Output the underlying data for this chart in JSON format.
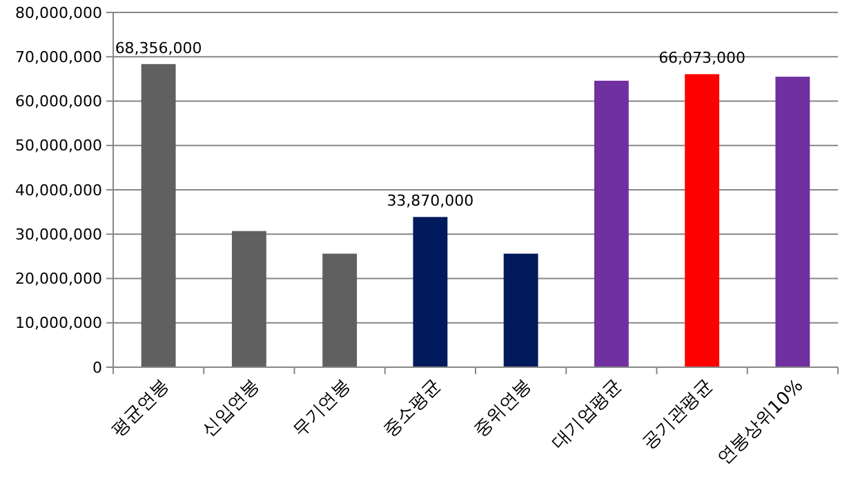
{
  "chart_data": {
    "type": "bar",
    "categories": [
      "평균연봉",
      "신입연봉",
      "무기연봉",
      "중소평균",
      "중위연봉",
      "대기업평균",
      "공기관평균",
      "연봉상위10%"
    ],
    "values": [
      68356000,
      30700000,
      25600000,
      33870000,
      25600000,
      64600000,
      66073000,
      65500000
    ],
    "colors": [
      "#606060",
      "#606060",
      "#606060",
      "#001a5c",
      "#001a5c",
      "#7030a0",
      "#ff0000",
      "#7030a0"
    ],
    "value_labels": [
      "68,356,000",
      null,
      null,
      "33,870,000",
      null,
      null,
      "66,073,000",
      null
    ],
    "ylim": [
      0,
      80000000
    ],
    "yticks": [
      {
        "value": 0,
        "label": "0"
      },
      {
        "value": 10000000,
        "label": "10,000,000"
      },
      {
        "value": 20000000,
        "label": "20,000,000"
      },
      {
        "value": 30000000,
        "label": "30,000,000"
      },
      {
        "value": 40000000,
        "label": "40,000,000"
      },
      {
        "value": 50000000,
        "label": "50,000,000"
      },
      {
        "value": 60000000,
        "label": "60,000,000"
      },
      {
        "value": 70000000,
        "label": "70,000,000"
      },
      {
        "value": 80000000,
        "label": "80,000,000"
      }
    ],
    "grid": "y"
  }
}
